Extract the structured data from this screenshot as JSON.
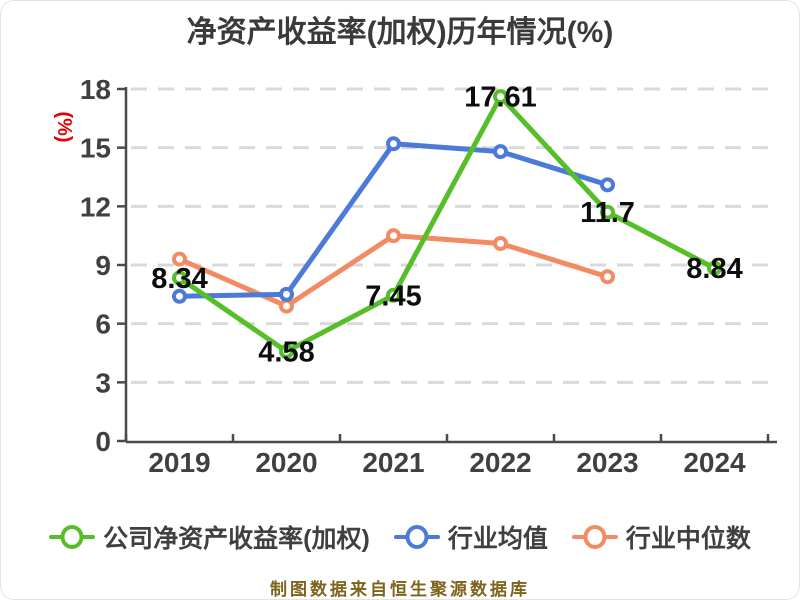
{
  "footer": "制图数据来自恒生聚源数据库",
  "y_axis_name": "(%)",
  "chart_data": {
    "type": "line",
    "title": "净资产收益率(加权)历年情况(%)",
    "categories": [
      "2019",
      "2020",
      "2021",
      "2022",
      "2023",
      "2024"
    ],
    "series": [
      {
        "name": "公司净资产收益率(加权)",
        "color": "#55be28",
        "values": [
          8.34,
          4.58,
          7.45,
          17.61,
          11.7,
          8.84
        ],
        "labeled": true
      },
      {
        "name": "行业均值",
        "color": "#4b7ad9",
        "values": [
          7.4,
          7.5,
          15.2,
          14.8,
          13.1,
          null
        ],
        "labeled": false
      },
      {
        "name": "行业中位数",
        "color": "#f38b62",
        "values": [
          9.3,
          6.9,
          10.5,
          10.1,
          8.4,
          null
        ],
        "labeled": false
      }
    ],
    "data_labels": [
      "8.34",
      "4.58",
      "7.45",
      "17.61",
      "11.7",
      "8.84"
    ],
    "xlabel": "",
    "ylabel": "(%)",
    "ylim": [
      0,
      18
    ],
    "yticks": [
      0,
      3,
      6,
      9,
      12,
      15,
      18
    ],
    "grid": true,
    "legend_position": "bottom",
    "marker": "circle-white-fill"
  }
}
